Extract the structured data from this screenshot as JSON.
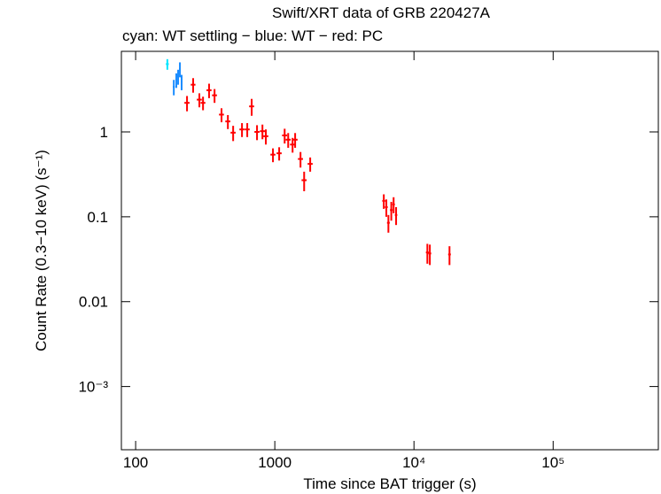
{
  "chart_data": {
    "type": "scatter",
    "title": "Swift/XRT data of GRB 220427A",
    "subtitle": "cyan: WT settling − blue: WT − red: PC",
    "x_label": "Time since BAT trigger (s)",
    "y_label": "Count Rate (0.3−10 keV) (s⁻¹)",
    "x_log": true,
    "y_log": true,
    "xlim": [
      79,
      570000
    ],
    "ylim": [
      0.00018,
      8.9
    ],
    "xticks": [
      100,
      1000,
      {
        "value": 10000,
        "label": "10⁴"
      },
      {
        "value": 100000,
        "label": "10⁵"
      }
    ],
    "yticks": [
      1,
      0.1,
      0.01,
      {
        "value": 0.001,
        "label": "10⁻³"
      }
    ],
    "series": [
      {
        "name": "WT settling",
        "color": "#00e5ff",
        "x": [
          169
        ],
        "y": [
          6.3
        ],
        "xerr": [
          4
        ],
        "yerr": [
          0.9
        ]
      },
      {
        "name": "WT",
        "color": "#1a8cff",
        "x": [
          188,
          196,
          202,
          208,
          214
        ],
        "y": [
          3.4,
          4.1,
          4.5,
          5.5,
          3.9
        ],
        "xerr": [
          3,
          3,
          3,
          3,
          3
        ],
        "yerr": [
          0.7,
          0.8,
          0.9,
          1.1,
          0.8
        ]
      },
      {
        "name": "PC",
        "color": "#ff0000",
        "x": [
          234,
          259,
          287,
          305,
          337,
          369,
          414,
          460,
          502,
          581,
          634,
          682,
          745,
          815,
          862,
          970,
          1075,
          1177,
          1248,
          1342,
          1400,
          1530,
          1625,
          1796,
          6070,
          6330,
          6550,
          6870,
          7140,
          7440,
          12480,
          13000,
          18000
        ],
        "y": [
          2.2,
          3.6,
          2.4,
          2.2,
          3.1,
          2.7,
          1.6,
          1.33,
          0.98,
          1.07,
          1.07,
          2.0,
          1.0,
          1.02,
          0.89,
          0.54,
          0.56,
          0.91,
          0.81,
          0.71,
          0.81,
          0.48,
          0.27,
          0.42,
          0.154,
          0.13,
          0.085,
          0.12,
          0.14,
          0.105,
          0.038,
          0.037,
          0.036
        ],
        "xerr": [
          10,
          10,
          12,
          12,
          14,
          15,
          17,
          19,
          21,
          24,
          26,
          28,
          31,
          34,
          36,
          40,
          45,
          49,
          52,
          56,
          58,
          64,
          68,
          75,
          150,
          150,
          150,
          150,
          150,
          150,
          300,
          300,
          400
        ],
        "yerr": [
          0.45,
          0.7,
          0.45,
          0.4,
          0.6,
          0.5,
          0.3,
          0.25,
          0.2,
          0.2,
          0.2,
          0.45,
          0.2,
          0.2,
          0.18,
          0.1,
          0.1,
          0.18,
          0.16,
          0.14,
          0.16,
          0.1,
          0.07,
          0.08,
          0.03,
          0.03,
          0.02,
          0.03,
          0.03,
          0.025,
          0.01,
          0.01,
          0.009
        ]
      }
    ]
  }
}
